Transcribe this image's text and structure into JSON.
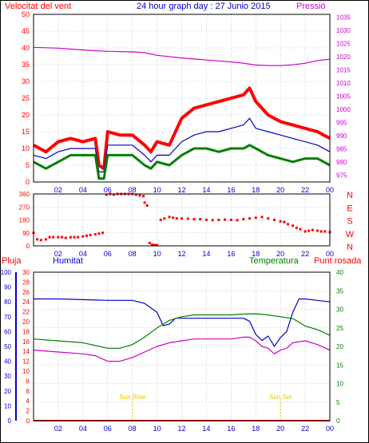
{
  "chart_data": [
    {
      "type": "line",
      "title": "24 hour graph day : 27 Junio 2015",
      "left_label": "Velocitat del vent",
      "right_label": "Pressió",
      "x_ticks": [
        "02",
        "04",
        "06",
        "08",
        "10",
        "12",
        "14",
        "16",
        "18",
        "20",
        "22",
        "00"
      ],
      "y_left_ticks": [
        0,
        5,
        10,
        15,
        20,
        25,
        30,
        35,
        40,
        45,
        50
      ],
      "y_left_range": [
        0,
        50
      ],
      "y_right_ticks": [
        975,
        980,
        985,
        990,
        995,
        1000,
        1005,
        1010,
        1015,
        1020,
        1025,
        1030,
        1035
      ],
      "y_right_range": [
        972.5,
        1036
      ],
      "grid": true,
      "series": [
        {
          "role": "gust",
          "color": "#ff0000",
          "x": [
            0,
            1,
            2,
            3,
            4,
            5,
            5.3,
            5.7,
            6,
            7,
            8,
            9,
            9.5,
            10,
            11,
            12,
            13,
            14,
            15,
            16,
            17,
            17.5,
            18,
            19,
            20,
            21,
            22,
            23,
            24
          ],
          "y": [
            11,
            9,
            12,
            13,
            12,
            13,
            5,
            4,
            15,
            14,
            14,
            11,
            9,
            12,
            11,
            19,
            22,
            23,
            24,
            25,
            26,
            28,
            24,
            20,
            18,
            17,
            16,
            15,
            13
          ]
        },
        {
          "role": "average",
          "color": "#0000cc",
          "x": [
            0,
            1,
            2,
            3,
            4,
            5,
            5.3,
            5.7,
            6,
            7,
            8,
            9,
            9.5,
            10,
            11,
            12,
            13,
            14,
            15,
            16,
            17,
            17.5,
            18,
            19,
            20,
            21,
            22,
            23,
            24
          ],
          "y": [
            8,
            7,
            9,
            10,
            10,
            10,
            3,
            3,
            11,
            11,
            11,
            8,
            6,
            8,
            8,
            12,
            14,
            15,
            15,
            16,
            17,
            19,
            16,
            15,
            14,
            13,
            12,
            11,
            9
          ]
        },
        {
          "role": "minimum",
          "color": "#008000",
          "x": [
            0,
            1,
            2,
            3,
            4,
            5,
            5.3,
            5.7,
            6,
            7,
            8,
            9,
            9.5,
            10,
            11,
            12,
            13,
            14,
            15,
            16,
            17,
            17.5,
            18,
            19,
            20,
            21,
            22,
            23,
            24
          ],
          "y": [
            6,
            4,
            6,
            8,
            8,
            8,
            1,
            1,
            8,
            8,
            8,
            5,
            4,
            6,
            5,
            8,
            10,
            10,
            9,
            10,
            10,
            11,
            10,
            8,
            7,
            6,
            7,
            7,
            5
          ]
        },
        {
          "role": "pressure",
          "color": "#cc00cc",
          "axis": "right",
          "x": [
            0,
            2,
            4,
            6,
            8,
            9,
            10,
            12,
            14,
            16,
            17,
            18,
            19,
            20,
            21,
            22,
            23,
            24
          ],
          "y": [
            1023.5,
            1023.2,
            1022.5,
            1022,
            1021.8,
            1021.5,
            1020.5,
            1019.5,
            1018.7,
            1018,
            1017.5,
            1016.8,
            1016.6,
            1016.6,
            1016.9,
            1017.5,
            1018.5,
            1019
          ]
        }
      ]
    },
    {
      "type": "scatter",
      "y_left_ticks": [
        0,
        90,
        180,
        270,
        360
      ],
      "y_left_range": [
        0,
        360
      ],
      "compass_labels": [
        "N",
        "W",
        "S",
        "E",
        "N"
      ],
      "color": "#ff0000",
      "grid": true,
      "x": [
        0,
        0.3,
        0.6,
        1,
        1.3,
        1.6,
        2,
        2.3,
        2.6,
        3,
        3.3,
        3.6,
        4,
        4.3,
        4.6,
        5,
        5.3,
        5.6,
        5.9,
        6.2,
        6.5,
        6.8,
        7.1,
        7.4,
        7.7,
        8,
        8.3,
        8.6,
        8.9,
        9.0,
        9.2,
        9.4,
        9.6,
        9.8,
        10,
        10.3,
        10.6,
        11,
        11.3,
        11.6,
        12,
        12.5,
        13,
        13.5,
        14,
        14.5,
        15,
        15.5,
        16,
        16.5,
        17,
        17.5,
        18,
        18.5,
        19,
        19.5,
        20,
        20.3,
        20.6,
        21,
        21.3,
        21.6,
        22,
        22.3,
        22.6,
        23,
        23.3,
        23.6,
        24
      ],
      "y": [
        90,
        45,
        40,
        45,
        60,
        60,
        60,
        60,
        55,
        60,
        60,
        60,
        65,
        70,
        75,
        80,
        85,
        90,
        355,
        360,
        355,
        360,
        360,
        360,
        360,
        360,
        355,
        350,
        345,
        300,
        280,
        20,
        8,
        5,
        5,
        180,
        190,
        200,
        195,
        190,
        190,
        188,
        185,
        185,
        180,
        178,
        180,
        182,
        180,
        178,
        185,
        190,
        195,
        200,
        190,
        180,
        170,
        165,
        150,
        140,
        125,
        115,
        100,
        105,
        110,
        105,
        100,
        100,
        95
      ]
    },
    {
      "type": "line",
      "left_label": "Pluja",
      "left2_label": "Humitat",
      "right_label": "Temperatura",
      "right2_label": "Punt rosada",
      "annotations": [
        "Sun Rise",
        "Sun Set"
      ],
      "sunrise_x": 8,
      "sunset_x": 20,
      "y_humidity_ticks": [
        0,
        10,
        20,
        30,
        40,
        50,
        60,
        70,
        80,
        90,
        100
      ],
      "y_rain_ticks": [
        0,
        2,
        4,
        6,
        8,
        10,
        12,
        14,
        16,
        18,
        20,
        22,
        24,
        26,
        28,
        30
      ],
      "y_temp_ticks": [
        0,
        5,
        10,
        15,
        20,
        25,
        30,
        35,
        40
      ],
      "humidity_range": [
        0,
        100
      ],
      "temperature_range": [
        0,
        40
      ],
      "grid": true,
      "series": [
        {
          "role": "humidity",
          "color": "#0000cc",
          "x": [
            0,
            2,
            4,
            6,
            7,
            8,
            9,
            10,
            10.5,
            11,
            11.5,
            12,
            13,
            14,
            15,
            16,
            17,
            17.5,
            18,
            18.5,
            19,
            19.5,
            20,
            20.5,
            21,
            21.5,
            22,
            23,
            24
          ],
          "y": [
            82,
            82,
            81.5,
            81,
            81,
            81,
            79,
            73,
            64,
            65,
            69,
            69,
            69,
            69,
            69,
            69,
            69,
            67,
            58,
            54,
            57,
            50,
            56,
            60,
            73,
            82,
            82,
            81,
            80
          ]
        },
        {
          "role": "temperature",
          "color": "#008000",
          "x": [
            0,
            2,
            4,
            6,
            7,
            8,
            9,
            10,
            11,
            12,
            13,
            14,
            15,
            16,
            17,
            18,
            19,
            20,
            21,
            22,
            23,
            24
          ],
          "y": [
            22,
            21.5,
            21,
            19.5,
            19.5,
            20.5,
            22.5,
            25,
            27,
            28,
            28.5,
            28.5,
            28.5,
            28.5,
            28.7,
            28.8,
            28.5,
            28,
            27.5,
            25.5,
            24.5,
            23
          ]
        },
        {
          "role": "dew_point",
          "color": "#cc00cc",
          "x": [
            0,
            2,
            4,
            5,
            6,
            7,
            8,
            9,
            10,
            11,
            12,
            13,
            14,
            15,
            16,
            17,
            17.5,
            18,
            18.5,
            19,
            19.5,
            20,
            20.5,
            21,
            22,
            23,
            24
          ],
          "y": [
            19,
            18.5,
            18,
            17.5,
            16,
            16,
            17,
            18.5,
            20,
            21,
            21.5,
            22,
            22,
            22,
            22,
            22.5,
            22.5,
            21.5,
            20,
            19.5,
            18,
            19,
            19.5,
            21,
            21.5,
            20.5,
            19
          ]
        },
        {
          "role": "rain",
          "color": "#ff0000",
          "x": [
            0,
            24
          ],
          "y": [
            0,
            0
          ]
        }
      ]
    }
  ]
}
